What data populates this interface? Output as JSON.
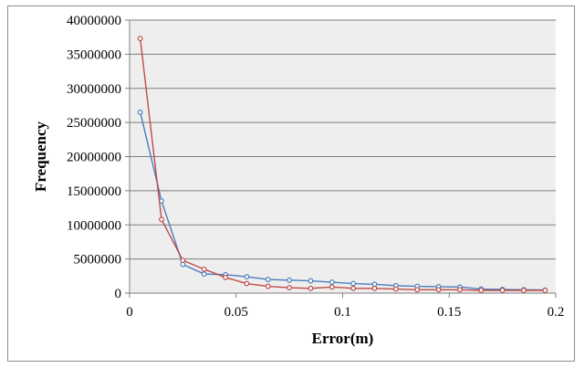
{
  "chart_data": {
    "type": "line",
    "title": "",
    "xlabel": "Error(m)",
    "ylabel": "Frequency",
    "xlim": [
      0,
      0.2
    ],
    "ylim": [
      0,
      40000000
    ],
    "x_ticks": [
      0,
      0.05,
      0.1,
      0.15,
      0.2
    ],
    "x_tick_labels": [
      "0",
      "0.05",
      "0.1",
      "0.15",
      "0.2"
    ],
    "y_ticks": [
      0,
      5000000,
      10000000,
      15000000,
      20000000,
      25000000,
      30000000,
      35000000,
      40000000
    ],
    "y_tick_labels": [
      "0",
      "5000000",
      "10000000",
      "15000000",
      "20000000",
      "25000000",
      "30000000",
      "35000000",
      "40000000"
    ],
    "grid": "horizontal",
    "legend": "none",
    "x": [
      0.005,
      0.015,
      0.025,
      0.035,
      0.045,
      0.055,
      0.065,
      0.075,
      0.085,
      0.095,
      0.105,
      0.115,
      0.125,
      0.135,
      0.145,
      0.155,
      0.165,
      0.175,
      0.185,
      0.195
    ],
    "series": [
      {
        "color": "#4a7ebb",
        "values": [
          26500000,
          13500000,
          4200000,
          2800000,
          2700000,
          2400000,
          2000000,
          1900000,
          1800000,
          1600000,
          1400000,
          1300000,
          1100000,
          1000000,
          950000,
          900000,
          600000,
          550000,
          500000,
          450000
        ]
      },
      {
        "color": "#be4b48",
        "values": [
          37300000,
          10800000,
          4800000,
          3500000,
          2300000,
          1400000,
          1000000,
          800000,
          700000,
          900000,
          700000,
          700000,
          600000,
          500000,
          500000,
          500000,
          400000,
          400000,
          400000,
          400000
        ]
      }
    ],
    "plot_background": "#eeeeee",
    "grid_color": "#7f7f7f"
  }
}
